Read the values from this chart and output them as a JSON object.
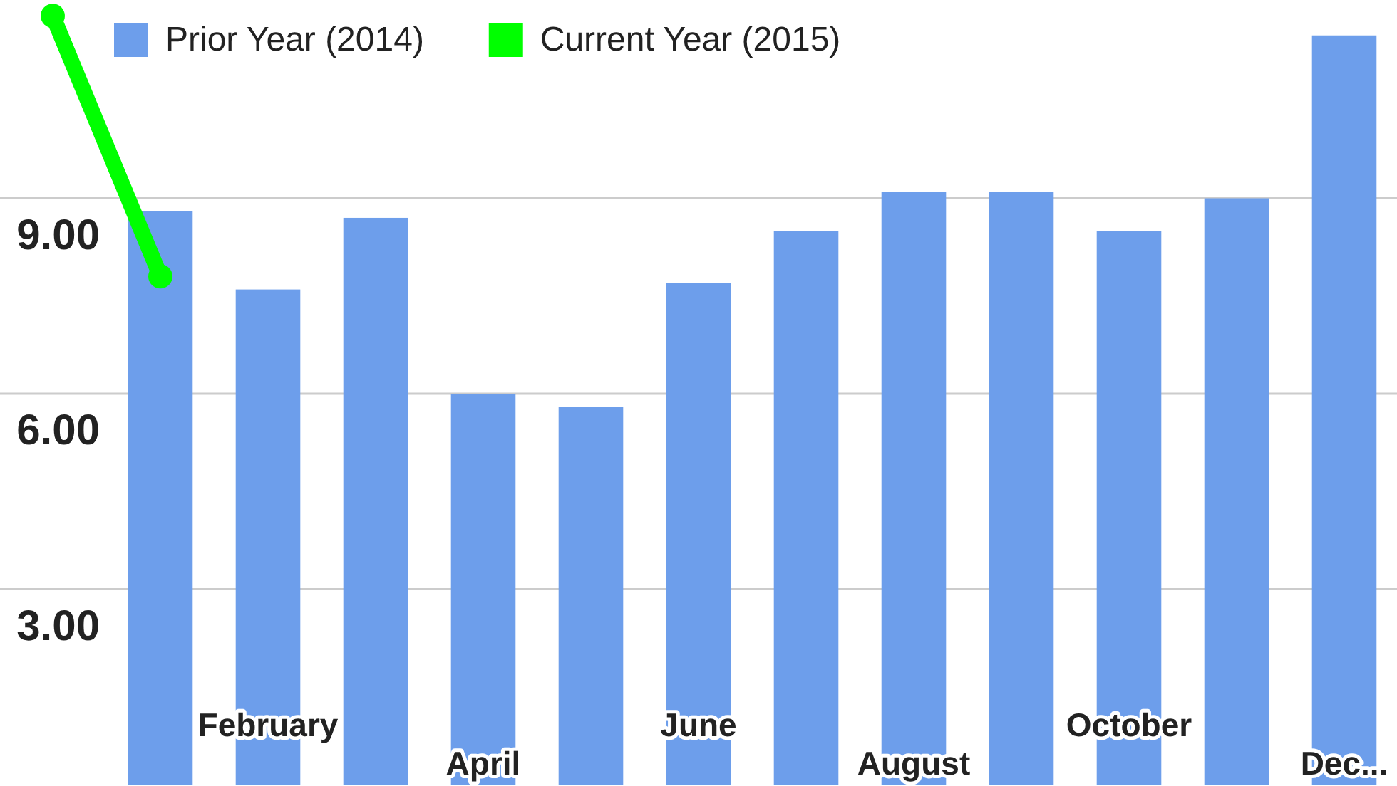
{
  "chart_data": {
    "type": "bar",
    "categories": [
      null,
      null,
      "February",
      null,
      "April",
      null,
      "June",
      null,
      "August",
      null,
      "October",
      null,
      "Dec..."
    ],
    "series": [
      {
        "name": "Prior Year (2014)",
        "color": "#6d9eeb",
        "values": [
          null,
          8.8,
          7.6,
          8.7,
          6.0,
          5.8,
          7.7,
          8.5,
          9.1,
          9.1,
          8.5,
          9.0,
          11.5
        ]
      },
      {
        "name": "Current Year (2015)",
        "type": "line",
        "color": "#00ff00",
        "values": [
          11.8,
          7.8,
          null,
          null,
          null,
          null,
          null,
          null,
          null,
          null,
          null,
          null,
          null
        ]
      }
    ],
    "ylim": [
      0,
      12
    ],
    "yticks": [
      {
        "value": 3,
        "label": "3.00"
      },
      {
        "value": 6,
        "label": "6.00"
      },
      {
        "value": 9,
        "label": "9.00"
      }
    ],
    "grid": "y",
    "legend": "top left",
    "marker": "circle"
  }
}
